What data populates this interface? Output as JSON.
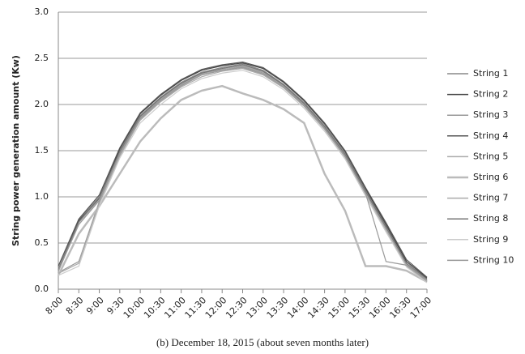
{
  "chart_data": {
    "type": "line",
    "caption": "(b) December 18, 2015 (about seven months later)",
    "y_label": "String power generation amount (Kw)",
    "categories": [
      "8:00",
      "8:30",
      "9:00",
      "9:30",
      "10:00",
      "10:30",
      "11:00",
      "11:30",
      "12:00",
      "12:30",
      "13:00",
      "13:30",
      "14:00",
      "14:30",
      "15:00",
      "15:30",
      "16:00",
      "16:30",
      "17:00"
    ],
    "ylim": [
      0,
      3
    ],
    "yticks": [
      {
        "value": 0,
        "label": "0.0"
      },
      0.5,
      {
        "value": 1,
        "label": "1.0"
      },
      1.5,
      {
        "value": 2,
        "label": "2.0"
      },
      2.5,
      {
        "value": 3,
        "label": "3.0"
      }
    ],
    "grid": true,
    "legend": "right",
    "series": [
      {
        "name": "String 1",
        "color": "#888888",
        "values": [
          0.22,
          0.75,
          1.0,
          1.5,
          1.88,
          2.08,
          2.24,
          2.35,
          2.4,
          2.44,
          2.37,
          2.22,
          2.02,
          1.77,
          1.47,
          1.07,
          0.68,
          0.27,
          0.1
        ]
      },
      {
        "name": "String 2",
        "color": "#444444",
        "values": [
          0.2,
          0.74,
          0.98,
          1.52,
          1.9,
          2.1,
          2.26,
          2.37,
          2.42,
          2.45,
          2.39,
          2.24,
          2.04,
          1.79,
          1.49,
          1.09,
          0.7,
          0.3,
          0.12
        ]
      },
      {
        "name": "String 3",
        "color": "#999999",
        "values": [
          0.18,
          0.3,
          0.95,
          1.45,
          1.84,
          2.04,
          2.2,
          2.32,
          2.37,
          2.4,
          2.33,
          2.19,
          1.99,
          1.74,
          1.44,
          1.04,
          0.65,
          0.26,
          0.09
        ]
      },
      {
        "name": "String 4",
        "color": "#555555",
        "values": [
          0.25,
          0.76,
          1.02,
          1.53,
          1.91,
          2.11,
          2.27,
          2.38,
          2.43,
          2.46,
          2.4,
          2.25,
          2.05,
          1.8,
          1.5,
          1.1,
          0.72,
          0.32,
          0.13
        ]
      },
      {
        "name": "String 5",
        "color": "#aaaaaa",
        "values": [
          0.19,
          0.72,
          0.97,
          1.48,
          1.86,
          2.06,
          2.22,
          2.33,
          2.38,
          2.42,
          2.35,
          2.2,
          2.0,
          1.75,
          1.45,
          1.05,
          0.66,
          0.27,
          0.1
        ]
      },
      {
        "name": "String 6",
        "color": "#bbbbbb",
        "values": [
          0.15,
          0.6,
          0.9,
          1.25,
          1.6,
          1.85,
          2.05,
          2.15,
          2.2,
          2.12,
          2.05,
          1.95,
          1.8,
          1.25,
          0.85,
          0.25,
          0.25,
          0.2,
          0.08
        ]
      },
      {
        "name": "String 7",
        "color": "#aaaaaa",
        "values": [
          0.17,
          0.28,
          0.93,
          1.44,
          1.83,
          2.03,
          2.19,
          2.3,
          2.36,
          2.39,
          2.32,
          2.18,
          1.98,
          1.73,
          1.43,
          1.03,
          0.64,
          0.25,
          0.08
        ]
      },
      {
        "name": "String 8",
        "color": "#777777",
        "values": [
          0.21,
          0.73,
          0.99,
          1.49,
          1.87,
          2.07,
          2.23,
          2.34,
          2.39,
          2.43,
          2.36,
          2.21,
          2.01,
          1.76,
          1.46,
          1.06,
          0.67,
          0.28,
          0.11
        ]
      },
      {
        "name": "String 9",
        "color": "#cccccc",
        "values": [
          0.15,
          0.25,
          0.9,
          1.42,
          1.8,
          2.0,
          2.17,
          2.28,
          2.34,
          2.37,
          2.3,
          2.16,
          1.96,
          1.71,
          1.41,
          1.01,
          0.62,
          0.24,
          0.07
        ]
      },
      {
        "name": "String 10",
        "color": "#999999",
        "values": [
          0.2,
          0.7,
          0.96,
          1.47,
          1.85,
          2.05,
          2.21,
          2.32,
          2.37,
          2.41,
          2.34,
          2.19,
          1.99,
          1.74,
          1.44,
          1.04,
          0.3,
          0.26,
          0.1
        ]
      }
    ]
  }
}
